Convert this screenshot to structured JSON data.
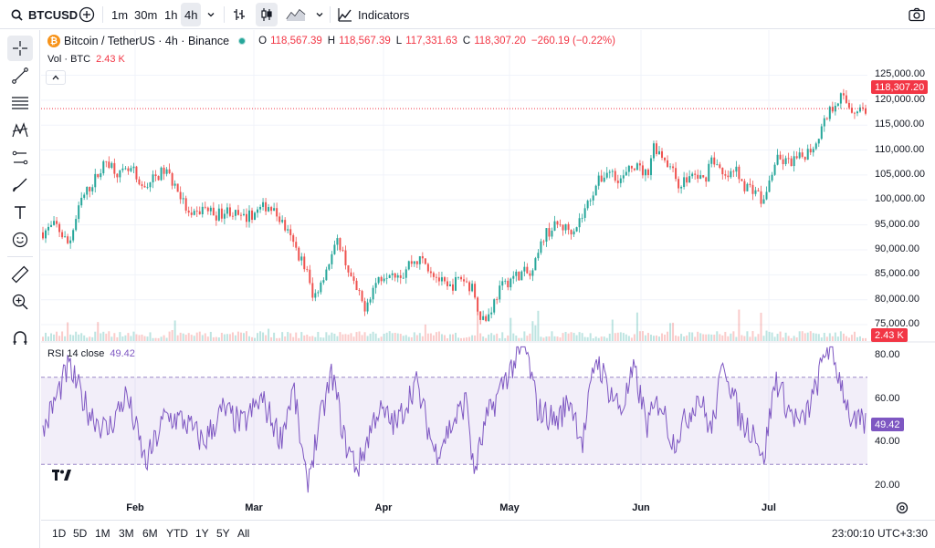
{
  "toolbar": {
    "symbol": "BTCUSD",
    "intervals": [
      "1m",
      "30m",
      "1h",
      "4h"
    ],
    "active_interval": "4h",
    "indicators_label": "Indicators",
    "icons": [
      "search-icon",
      "add-symbol-icon",
      "chevron-down-icon",
      "bar-chart-icon",
      "candles-icon",
      "area-chart-icon",
      "indicators-icon",
      "camera-icon"
    ]
  },
  "left_tools": [
    "crosshair-icon",
    "trend-line-icon",
    "fib-icon",
    "pattern-icon",
    "projection-icon",
    "brush-icon",
    "text-icon",
    "emoji-icon",
    "ruler-icon",
    "zoom-icon",
    "magnet-icon"
  ],
  "legend": {
    "title": "Bitcoin / TetherUS · 4h · Binance",
    "o_label": "O",
    "o": "118,567.39",
    "h_label": "H",
    "h": "118,567.39",
    "l_label": "L",
    "l": "117,331.63",
    "c_label": "C",
    "c": "118,307.20",
    "change": "−260.19 (−0.22%)",
    "vol_label": "Vol · BTC",
    "vol_value": "2.43 K",
    "rsi_label": "RSI 14 close",
    "rsi_value": "49.42"
  },
  "price_axis": [
    "125,000.00",
    "120,000.00",
    "115,000.00",
    "110,000.00",
    "105,000.00",
    "100,000.00",
    "95,000.00",
    "90,000.00",
    "85,000.00",
    "80,000.00",
    "75,000.00"
  ],
  "last_price_tag": "118,307.20",
  "volume_tag": "2.43 K",
  "rsi_axis": [
    "80.00",
    "60.00",
    "40.00",
    "20.00"
  ],
  "rsi_tag": "49.42",
  "time_axis": [
    "Feb",
    "Mar",
    "Apr",
    "May",
    "Jun",
    "Jul"
  ],
  "ranges": [
    "1D",
    "5D",
    "1M",
    "3M",
    "6M",
    "YTD",
    "1Y",
    "5Y",
    "All"
  ],
  "clock": "23:00:10 UTC+3:30",
  "colors": {
    "up": "#26a69a",
    "down": "#ef5350",
    "rsi": "#7e57c2",
    "rsi_band": "#7e57c2",
    "last_price": "#f23645"
  },
  "chart_data": {
    "type": "candlestick",
    "description_units": "USD",
    "price_scale": [
      73000,
      126000
    ],
    "rsi_scale": [
      15,
      85
    ],
    "rsi_bands": [
      30,
      70
    ],
    "close_path": [
      [
        0,
        93500
      ],
      [
        2,
        95000
      ],
      [
        4,
        91000
      ],
      [
        6,
        100000
      ],
      [
        8,
        104000
      ],
      [
        10,
        108000
      ],
      [
        12,
        105000
      ],
      [
        14,
        106000
      ],
      [
        15,
        102000
      ],
      [
        17,
        104000
      ],
      [
        19,
        106000
      ],
      [
        21,
        102000
      ],
      [
        23,
        96000
      ],
      [
        25,
        98500
      ],
      [
        27,
        97000
      ],
      [
        29,
        98000
      ],
      [
        31,
        96000
      ],
      [
        33,
        97500
      ],
      [
        35,
        99000
      ],
      [
        37,
        96000
      ],
      [
        39,
        91000
      ],
      [
        41,
        86000
      ],
      [
        42,
        80000
      ],
      [
        44,
        86000
      ],
      [
        46,
        92000
      ],
      [
        48,
        84000
      ],
      [
        50,
        78500
      ],
      [
        52,
        84000
      ],
      [
        54,
        86000
      ],
      [
        56,
        85000
      ],
      [
        57,
        87500
      ],
      [
        59,
        88000
      ],
      [
        61,
        85000
      ],
      [
        63,
        82000
      ],
      [
        65,
        84500
      ],
      [
        67,
        82000
      ],
      [
        68,
        77000
      ],
      [
        69,
        76000
      ],
      [
        71,
        82000
      ],
      [
        73,
        84500
      ],
      [
        75,
        85500
      ],
      [
        76,
        84500
      ],
      [
        78,
        93000
      ],
      [
        80,
        95000
      ],
      [
        82,
        94000
      ],
      [
        83,
        95000
      ],
      [
        84,
        97000
      ],
      [
        86,
        103000
      ],
      [
        88,
        106000
      ],
      [
        90,
        104000
      ],
      [
        92,
        107000
      ],
      [
        94,
        105000
      ],
      [
        95,
        111000
      ],
      [
        97,
        108000
      ],
      [
        99,
        103000
      ],
      [
        101,
        105000
      ],
      [
        103,
        104000
      ],
      [
        104,
        109000
      ],
      [
        106,
        104000
      ],
      [
        108,
        106000
      ],
      [
        109,
        103000
      ],
      [
        111,
        102000
      ],
      [
        112,
        99000
      ],
      [
        114,
        108000
      ],
      [
        116,
        107500
      ],
      [
        118,
        108500
      ],
      [
        120,
        111000
      ],
      [
        122,
        117000
      ],
      [
        124,
        121000
      ],
      [
        126,
        118000
      ],
      [
        128,
        118300
      ]
    ],
    "volume": "bars near zero with occasional spikes; latest 2.43 K",
    "rsi_path": [
      [
        0,
        45
      ],
      [
        4,
        75
      ],
      [
        7,
        55
      ],
      [
        10,
        45
      ],
      [
        13,
        62
      ],
      [
        16,
        30
      ],
      [
        19,
        52
      ],
      [
        22,
        50
      ],
      [
        25,
        40
      ],
      [
        28,
        55
      ],
      [
        31,
        48
      ],
      [
        34,
        60
      ],
      [
        37,
        42
      ],
      [
        39,
        65
      ],
      [
        41,
        20
      ],
      [
        43,
        48
      ],
      [
        45,
        72
      ],
      [
        47,
        40
      ],
      [
        49,
        28
      ],
      [
        52,
        55
      ],
      [
        55,
        48
      ],
      [
        58,
        68
      ],
      [
        61,
        35
      ],
      [
        64,
        50
      ],
      [
        66,
        60
      ],
      [
        67,
        25
      ],
      [
        69,
        50
      ],
      [
        72,
        70
      ],
      [
        75,
        85
      ],
      [
        77,
        55
      ],
      [
        80,
        50
      ],
      [
        82,
        60
      ],
      [
        84,
        40
      ],
      [
        86,
        80
      ],
      [
        88,
        65
      ],
      [
        90,
        55
      ],
      [
        92,
        73
      ],
      [
        94,
        48
      ],
      [
        96,
        60
      ],
      [
        98,
        40
      ],
      [
        100,
        50
      ],
      [
        102,
        62
      ],
      [
        104,
        45
      ],
      [
        106,
        78
      ],
      [
        108,
        55
      ],
      [
        109,
        48
      ],
      [
        111,
        45
      ],
      [
        112,
        30
      ],
      [
        114,
        70
      ],
      [
        116,
        55
      ],
      [
        118,
        48
      ],
      [
        120,
        62
      ],
      [
        122,
        85
      ],
      [
        124,
        70
      ],
      [
        126,
        48
      ],
      [
        128,
        49
      ]
    ],
    "x_labels": [
      "Feb",
      "Mar",
      "Apr",
      "May",
      "Jun",
      "Jul"
    ]
  }
}
